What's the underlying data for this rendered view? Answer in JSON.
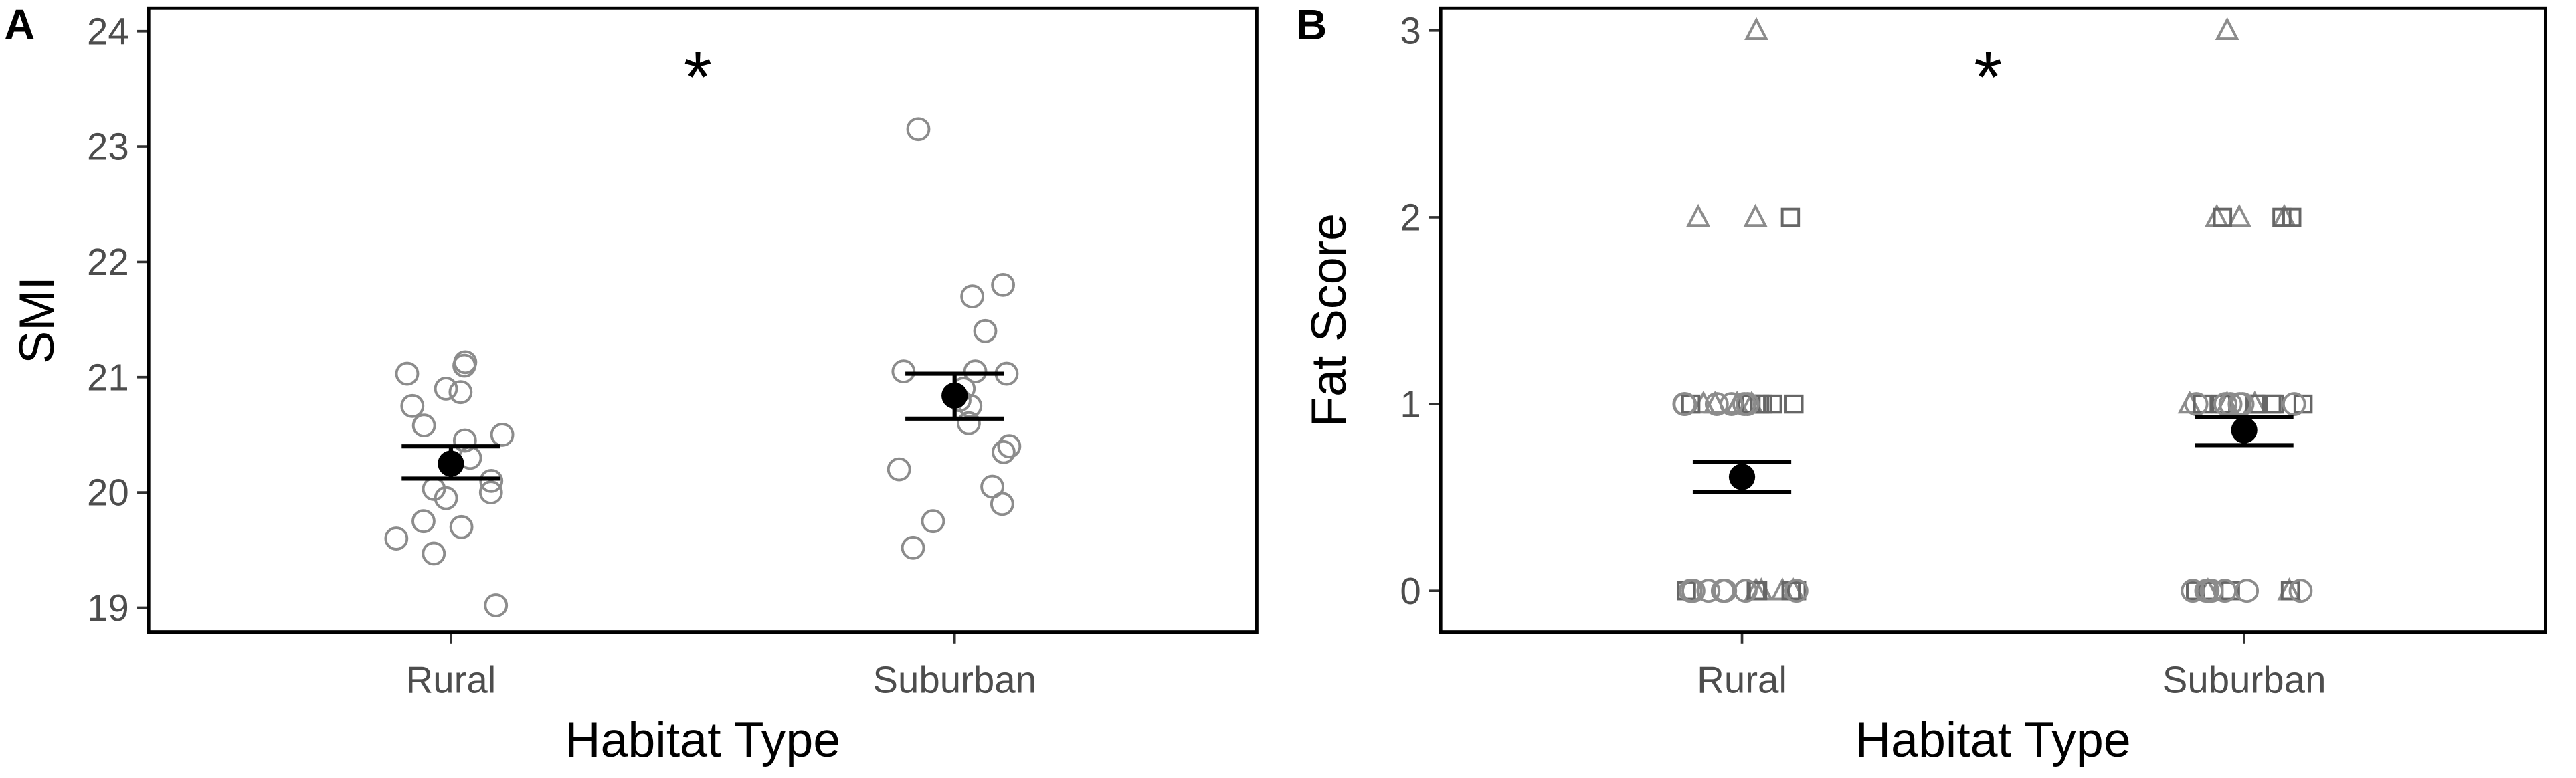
{
  "chart_data": [
    {
      "type": "strip",
      "panel_label": "A",
      "annotation": "*",
      "xlabel": "Habitat Type",
      "ylabel": "SMI",
      "categories": [
        "Rural",
        "Suburban"
      ],
      "ylim": [
        18.79,
        24.2
      ],
      "yticks": [
        19,
        20,
        21,
        22,
        23,
        24
      ],
      "series": [
        {
          "marker": "circle",
          "color": "#8c8c8c",
          "values": [
            [
              21.13,
              21.1,
              21.03,
              20.9,
              20.87,
              20.75,
              20.58,
              20.5,
              20.45,
              20.3,
              20.1,
              20.03,
              20.0,
              19.95,
              19.75,
              19.7,
              19.6,
              19.47,
              19.02
            ],
            [
              23.15,
              21.8,
              21.7,
              21.4,
              21.05,
              21.05,
              21.03,
              20.9,
              20.8,
              20.75,
              20.6,
              20.4,
              20.35,
              20.2,
              20.05,
              19.9,
              19.75,
              19.52
            ]
          ]
        }
      ],
      "mean": [
        20.25,
        20.84
      ],
      "error_low": [
        20.12,
        20.64
      ],
      "error_high": [
        20.4,
        21.03
      ]
    },
    {
      "type": "strip",
      "panel_label": "B",
      "annotation": "*",
      "xlabel": "Habitat Type",
      "ylabel": "Fat Score",
      "categories": [
        "Rural",
        "Suburban"
      ],
      "ylim": [
        -0.22,
        3.12
      ],
      "yticks": [
        0,
        1,
        2,
        3
      ],
      "series": [
        {
          "marker": "triangle",
          "color": "#8c8c8c",
          "values": [
            [
              3,
              2,
              2,
              1,
              1,
              1,
              1,
              0,
              0,
              0,
              0
            ],
            [
              3,
              2,
              2,
              2,
              1,
              1,
              1,
              0,
              0
            ]
          ]
        },
        {
          "marker": "square",
          "color": "#666666",
          "values": [
            [
              2,
              1,
              1,
              1,
              1,
              1,
              1,
              1,
              0,
              0,
              0,
              0,
              0
            ],
            [
              2,
              2,
              2,
              1,
              1,
              1,
              1,
              1,
              1,
              1,
              1,
              0,
              0,
              0,
              0
            ]
          ]
        },
        {
          "marker": "circle",
          "color": "#8c8c8c",
          "values": [
            [
              1,
              1,
              1,
              1,
              1,
              1,
              0,
              0,
              0,
              0,
              0,
              0,
              0,
              0
            ],
            [
              1,
              1,
              1,
              1,
              1,
              1,
              0,
              0,
              0,
              0,
              0,
              0,
              0
            ]
          ]
        }
      ],
      "mean": [
        0.61,
        0.86
      ],
      "error_low": [
        0.53,
        0.78
      ],
      "error_high": [
        0.69,
        0.93
      ]
    }
  ]
}
